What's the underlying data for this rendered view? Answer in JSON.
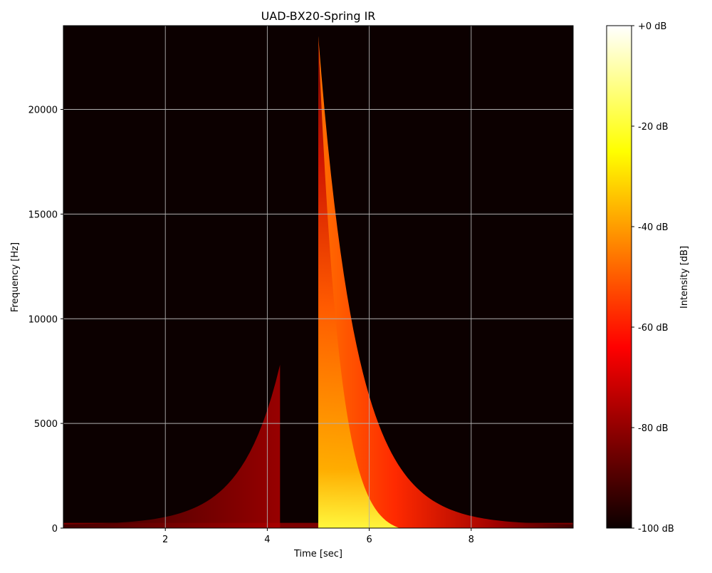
{
  "chart_data": {
    "type": "heatmap",
    "title": "UAD-BX20-Spring IR",
    "xlabel": "Time [sec]",
    "ylabel": "Frequency [Hz]",
    "xlim": [
      0,
      10
    ],
    "ylim": [
      0,
      24000
    ],
    "x_ticks": [
      2,
      4,
      6,
      8
    ],
    "x_tick_labels": [
      "2",
      "4",
      "6",
      "8"
    ],
    "y_ticks": [
      0,
      5000,
      10000,
      15000,
      20000
    ],
    "y_tick_labels": [
      "0",
      "5000",
      "10000",
      "15000",
      "20000"
    ],
    "grid": true,
    "colormap": "hot",
    "colorbar": {
      "label": "Intensity [dB]",
      "range": [
        -100,
        0
      ],
      "ticks": [
        0,
        -20,
        -40,
        -60,
        -80,
        -100
      ],
      "tick_labels": [
        "+0 dB",
        "-20 dB",
        "-40 dB",
        "-60 dB",
        "-80 dB",
        "-100 dB"
      ]
    },
    "features": [
      {
        "kind": "pre-echo",
        "t_start": 0,
        "t_end": 4.25,
        "peak_frequency_hz": 7800,
        "intensity_db": -80
      },
      {
        "kind": "impulse",
        "t": 5.0,
        "max_frequency_hz": 23500,
        "intensity_db": -20
      },
      {
        "kind": "decay",
        "t_start": 5.0,
        "t_end": 10.0,
        "intensity_db": -55
      }
    ],
    "colors": {
      "background": "#0c0000",
      "grid": "#b0b0b0"
    }
  }
}
